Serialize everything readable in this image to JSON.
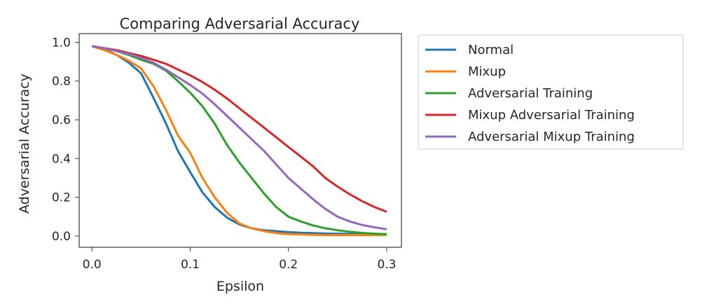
{
  "chart_data": {
    "type": "line",
    "title": "Comparing Adversarial Accuracy",
    "xlabel": "Epsilon",
    "ylabel": "Adversarial Accuracy",
    "xlim": [
      -0.013,
      0.315
    ],
    "ylim": [
      -0.058,
      1.045
    ],
    "xticks": [
      "0.0",
      "0.1",
      "0.2",
      "0.3"
    ],
    "xtick_values": [
      0.0,
      0.1,
      0.2,
      0.3
    ],
    "yticks": [
      "0.0",
      "0.2",
      "0.4",
      "0.6",
      "0.8",
      "1.0"
    ],
    "ytick_values": [
      0.0,
      0.2,
      0.4,
      0.6,
      0.8,
      1.0
    ],
    "grid": false,
    "legend_placement": "outside-upper-right",
    "x": [
      0,
      0.0125,
      0.025,
      0.0375,
      0.05,
      0.0625,
      0.075,
      0.0875,
      0.1,
      0.1125,
      0.125,
      0.1375,
      0.15,
      0.1625,
      0.175,
      0.1875,
      0.2,
      0.2125,
      0.225,
      0.2375,
      0.25,
      0.2625,
      0.275,
      0.2875,
      0.3
    ],
    "series": [
      {
        "name": "Normal",
        "color": "#1f77b4",
        "values": [
          0.98,
          0.965,
          0.935,
          0.895,
          0.84,
          0.715,
          0.585,
          0.44,
          0.33,
          0.225,
          0.15,
          0.095,
          0.06,
          0.04,
          0.03,
          0.025,
          0.02,
          0.017,
          0.015,
          0.013,
          0.012,
          0.011,
          0.01,
          0.01,
          0.01
        ]
      },
      {
        "name": "Mixup",
        "color": "#ff7f0e",
        "values": [
          0.98,
          0.96,
          0.935,
          0.905,
          0.865,
          0.775,
          0.655,
          0.52,
          0.43,
          0.3,
          0.2,
          0.12,
          0.065,
          0.04,
          0.025,
          0.015,
          0.01,
          0.008,
          0.006,
          0.005,
          0.005,
          0.005,
          0.005,
          0.005,
          0.005
        ]
      },
      {
        "name": "Adversarial Training",
        "color": "#2ca02c",
        "values": [
          0.98,
          0.97,
          0.955,
          0.935,
          0.91,
          0.89,
          0.855,
          0.8,
          0.74,
          0.67,
          0.58,
          0.47,
          0.38,
          0.3,
          0.22,
          0.15,
          0.1,
          0.075,
          0.055,
          0.04,
          0.03,
          0.022,
          0.016,
          0.012,
          0.01
        ]
      },
      {
        "name": "Mixup Adversarial Training",
        "color": "#d62728",
        "values": [
          0.98,
          0.97,
          0.96,
          0.945,
          0.93,
          0.91,
          0.89,
          0.86,
          0.83,
          0.795,
          0.755,
          0.71,
          0.66,
          0.61,
          0.56,
          0.51,
          0.46,
          0.41,
          0.36,
          0.3,
          0.255,
          0.215,
          0.18,
          0.15,
          0.125
        ]
      },
      {
        "name": "Adversarial Mixup Training",
        "color": "#9467bd",
        "values": [
          0.98,
          0.97,
          0.955,
          0.94,
          0.92,
          0.895,
          0.86,
          0.82,
          0.78,
          0.735,
          0.68,
          0.62,
          0.56,
          0.5,
          0.44,
          0.37,
          0.3,
          0.245,
          0.19,
          0.14,
          0.1,
          0.075,
          0.057,
          0.045,
          0.035
        ]
      }
    ]
  }
}
